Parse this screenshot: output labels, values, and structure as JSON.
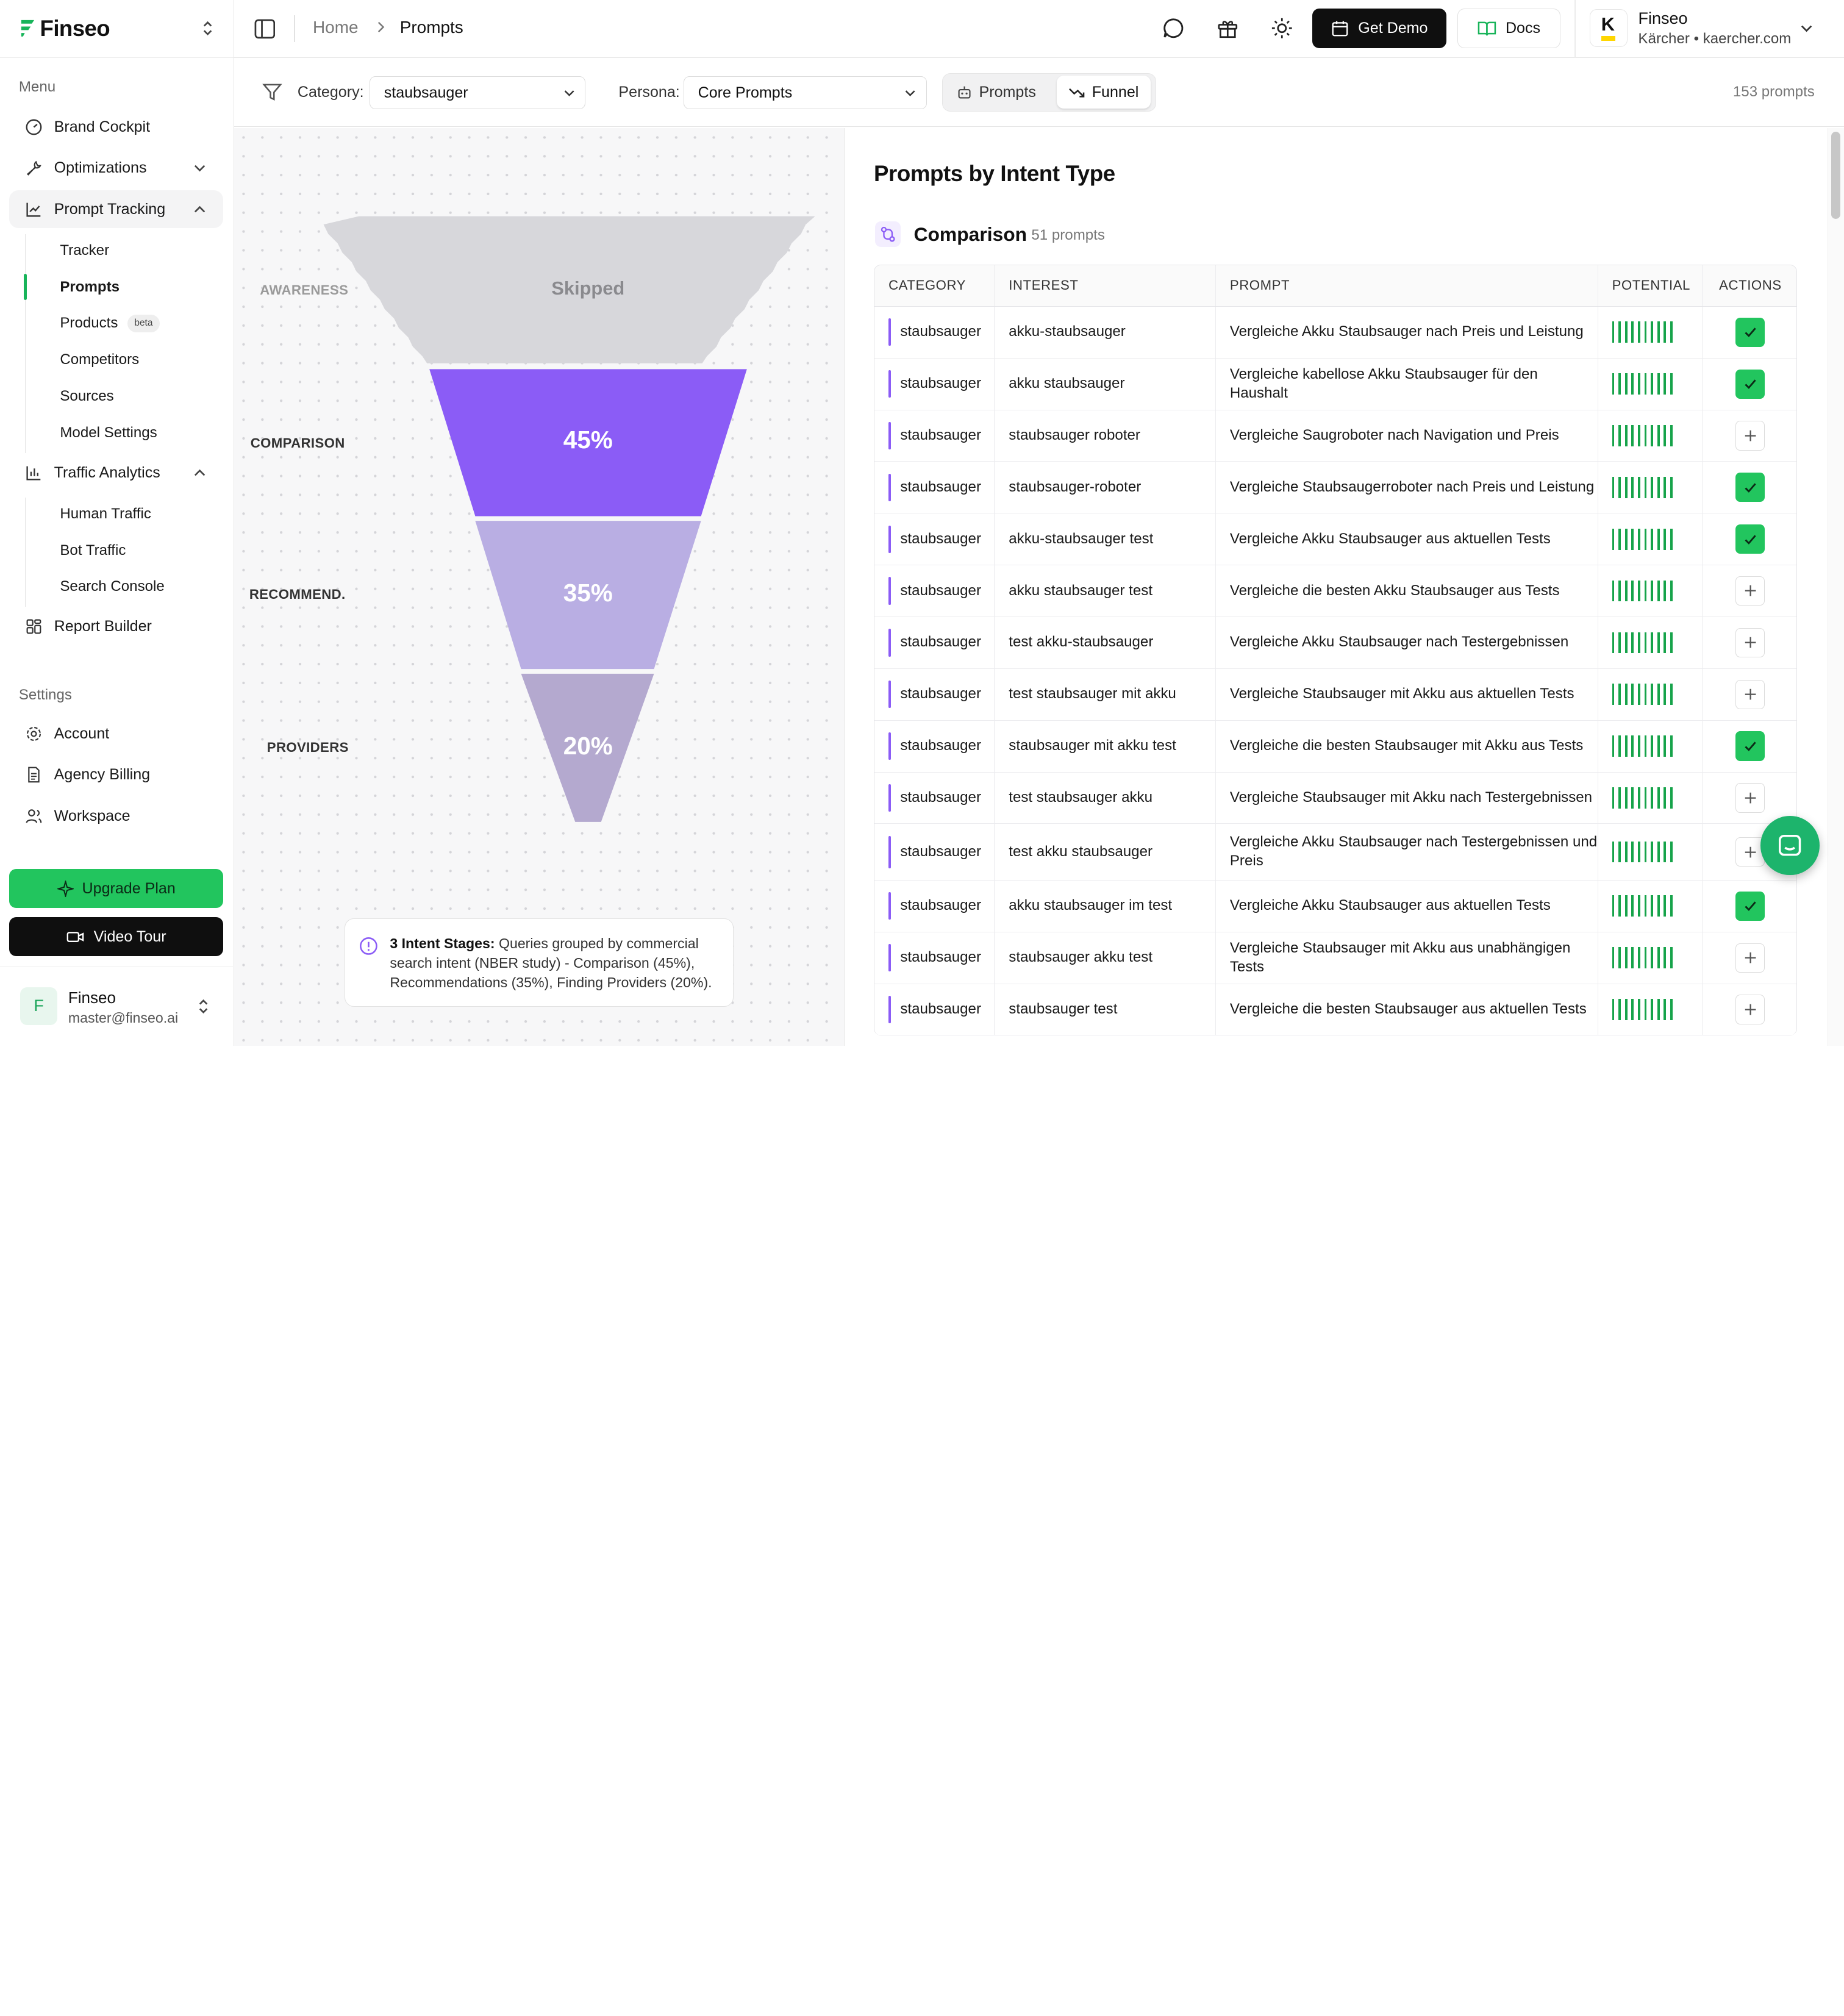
{
  "app": {
    "brand": "Finseo"
  },
  "topbar": {
    "breadcrumb_home": "Home",
    "breadcrumb_current": "Prompts",
    "get_demo_label": "Get Demo",
    "docs_label": "Docs",
    "account_name": "Finseo",
    "account_sub": "Kärcher • kaercher.com",
    "account_logo_letter": "K"
  },
  "sidebar": {
    "menu_heading": "Menu",
    "settings_heading": "Settings",
    "items": [
      {
        "label": "Brand Cockpit"
      },
      {
        "label": "Optimizations"
      },
      {
        "label": "Prompt Tracking"
      },
      {
        "label": "Traffic Analytics"
      },
      {
        "label": "Report Builder"
      }
    ],
    "prompt_tracking_sub": [
      {
        "label": "Tracker"
      },
      {
        "label": "Prompts"
      },
      {
        "label": "Products",
        "badge": "beta"
      },
      {
        "label": "Competitors"
      },
      {
        "label": "Sources"
      },
      {
        "label": "Model Settings"
      }
    ],
    "traffic_sub": [
      {
        "label": "Human Traffic"
      },
      {
        "label": "Bot Traffic"
      },
      {
        "label": "Search Console"
      }
    ],
    "settings_items": [
      {
        "label": "Account"
      },
      {
        "label": "Agency Billing"
      },
      {
        "label": "Workspace"
      }
    ],
    "upgrade_label": "Upgrade Plan",
    "video_tour_label": "Video Tour",
    "user": {
      "initial": "F",
      "name": "Finseo",
      "email": "master@finseo.ai"
    }
  },
  "filters": {
    "category_label": "Category:",
    "category_value": "staubsauger",
    "persona_label": "Persona:",
    "persona_value": "Core Prompts",
    "view_prompts": "Prompts",
    "view_funnel": "Funnel",
    "active_view": "Funnel",
    "count_text": "153 prompts"
  },
  "funnel": {
    "stages": [
      {
        "label": "AWARENESS",
        "value": "Skipped",
        "color": "#d7d7db"
      },
      {
        "label": "COMPARISON",
        "value": "45%",
        "color": "#8b5cf6"
      },
      {
        "label": "RECOMMEND.",
        "value": "35%",
        "color": "#b9aee3"
      },
      {
        "label": "PROVIDERS",
        "value": "20%",
        "color": "#b4a9cf"
      }
    ],
    "info_title": "3 Intent Stages:",
    "info_body": "Queries grouped by commercial search intent (NBER study) - Comparison (45%), Recommendations (35%), Finding Providers (20%)."
  },
  "intent": {
    "title": "Prompts by Intent Type",
    "group_name": "Comparison",
    "group_count": "51 prompts",
    "columns": [
      "CATEGORY",
      "INTEREST",
      "PROMPT",
      "POTENTIAL",
      "ACTIONS"
    ],
    "rows": [
      {
        "category": "staubsauger",
        "interest": "akku-staubsauger",
        "prompt": "Vergleiche Akku Staubsauger nach Preis und Leistung",
        "potential": 10,
        "added": true
      },
      {
        "category": "staubsauger",
        "interest": "akku staubsauger",
        "prompt": "Vergleiche kabellose Akku Staubsauger für den Haushalt",
        "potential": 10,
        "added": true
      },
      {
        "category": "staubsauger",
        "interest": "staubsauger roboter",
        "prompt": "Vergleiche Saugroboter nach Navigation und Preis",
        "potential": 10,
        "added": false
      },
      {
        "category": "staubsauger",
        "interest": "staubsauger-roboter",
        "prompt": "Vergleiche Staubsaugerroboter nach Preis und Leistung",
        "potential": 10,
        "added": true
      },
      {
        "category": "staubsauger",
        "interest": "akku-staubsauger test",
        "prompt": "Vergleiche Akku Staubsauger aus aktuellen Tests",
        "potential": 10,
        "added": true
      },
      {
        "category": "staubsauger",
        "interest": "akku staubsauger test",
        "prompt": "Vergleiche die besten Akku Staubsauger aus Tests",
        "potential": 10,
        "added": false
      },
      {
        "category": "staubsauger",
        "interest": "test akku-staubsauger",
        "prompt": "Vergleiche Akku Staubsauger nach Testergebnissen",
        "potential": 10,
        "added": false
      },
      {
        "category": "staubsauger",
        "interest": "test staubsauger mit akku",
        "prompt": "Vergleiche Staubsauger mit Akku aus aktuellen Tests",
        "potential": 10,
        "added": false
      },
      {
        "category": "staubsauger",
        "interest": "staubsauger mit akku test",
        "prompt": "Vergleiche die besten Staubsauger mit Akku aus Tests",
        "potential": 10,
        "added": true
      },
      {
        "category": "staubsauger",
        "interest": "test staubsauger akku",
        "prompt": "Vergleiche Staubsauger mit Akku nach Testergebnissen",
        "potential": 10,
        "added": false
      },
      {
        "category": "staubsauger",
        "interest": "test akku staubsauger",
        "prompt": "Vergleiche Akku Staubsauger nach Testergebnissen und Preis",
        "potential": 10,
        "added": false
      },
      {
        "category": "staubsauger",
        "interest": "akku staubsauger im test",
        "prompt": "Vergleiche Akku Staubsauger aus aktuellen Tests",
        "potential": 10,
        "added": true
      },
      {
        "category": "staubsauger",
        "interest": "staubsauger akku test",
        "prompt": "Vergleiche Staubsauger mit Akku aus unabhängigen Tests",
        "potential": 10,
        "added": false
      },
      {
        "category": "staubsauger",
        "interest": "staubsauger test",
        "prompt": "Vergleiche die besten Staubsauger aus aktuellen Tests",
        "potential": 10,
        "added": false
      }
    ]
  },
  "colors": {
    "accent": "#22c55e",
    "purple": "#8b5cf6",
    "potential_bar": "#16a34a"
  }
}
